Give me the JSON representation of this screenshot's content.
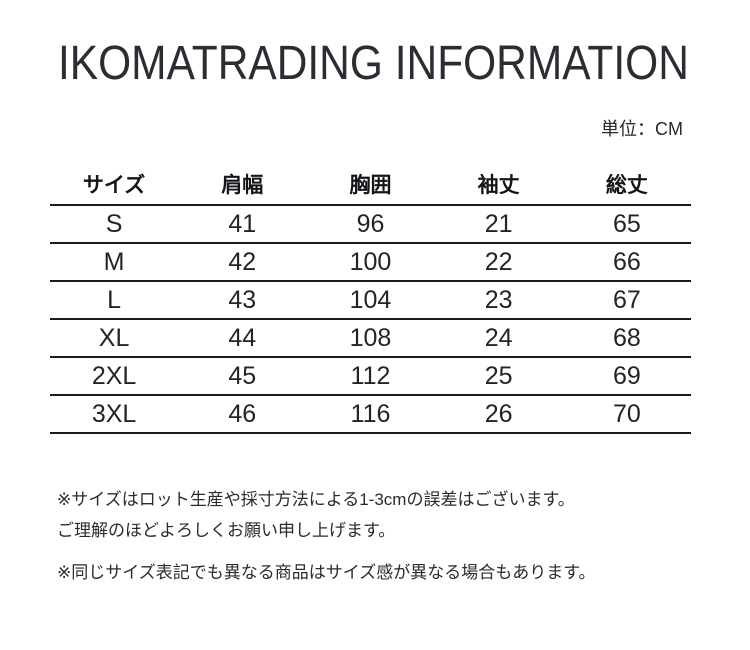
{
  "title": "IKOMATRADING INFORMATION",
  "unit_label": "単位：CM",
  "size_table": {
    "columns": [
      "サイズ",
      "肩幅",
      "胸囲",
      "袖丈",
      "総丈"
    ],
    "rows": [
      [
        "S",
        "41",
        "96",
        "21",
        "65"
      ],
      [
        "M",
        "42",
        "100",
        "22",
        "66"
      ],
      [
        "L",
        "43",
        "104",
        "23",
        "67"
      ],
      [
        "XL",
        "44",
        "108",
        "24",
        "68"
      ],
      [
        "2XL",
        "45",
        "112",
        "25",
        "69"
      ],
      [
        "3XL",
        "46",
        "116",
        "26",
        "70"
      ]
    ]
  },
  "notes": [
    "※サイズはロット生産や採寸方法による1-3cmの誤差はございます。",
    "ご理解のほどよろしくお願い申し上げます。",
    "※同じサイズ表記でも異なる商品はサイズ感が異なる場合もあります。"
  ],
  "colors": {
    "background": "#ffffff",
    "text": "#26282c",
    "line": "#1c1c1c"
  },
  "chart_data": {
    "type": "table",
    "title": "IKOMATRADING INFORMATION",
    "unit": "CM",
    "columns": [
      "サイズ",
      "肩幅",
      "胸囲",
      "袖丈",
      "総丈"
    ],
    "rows": [
      [
        "S",
        41,
        96,
        21,
        65
      ],
      [
        "M",
        42,
        100,
        22,
        66
      ],
      [
        "L",
        43,
        104,
        23,
        67
      ],
      [
        "XL",
        44,
        108,
        24,
        68
      ],
      [
        "2XL",
        45,
        112,
        25,
        69
      ],
      [
        "3XL",
        46,
        116,
        26,
        70
      ]
    ]
  }
}
